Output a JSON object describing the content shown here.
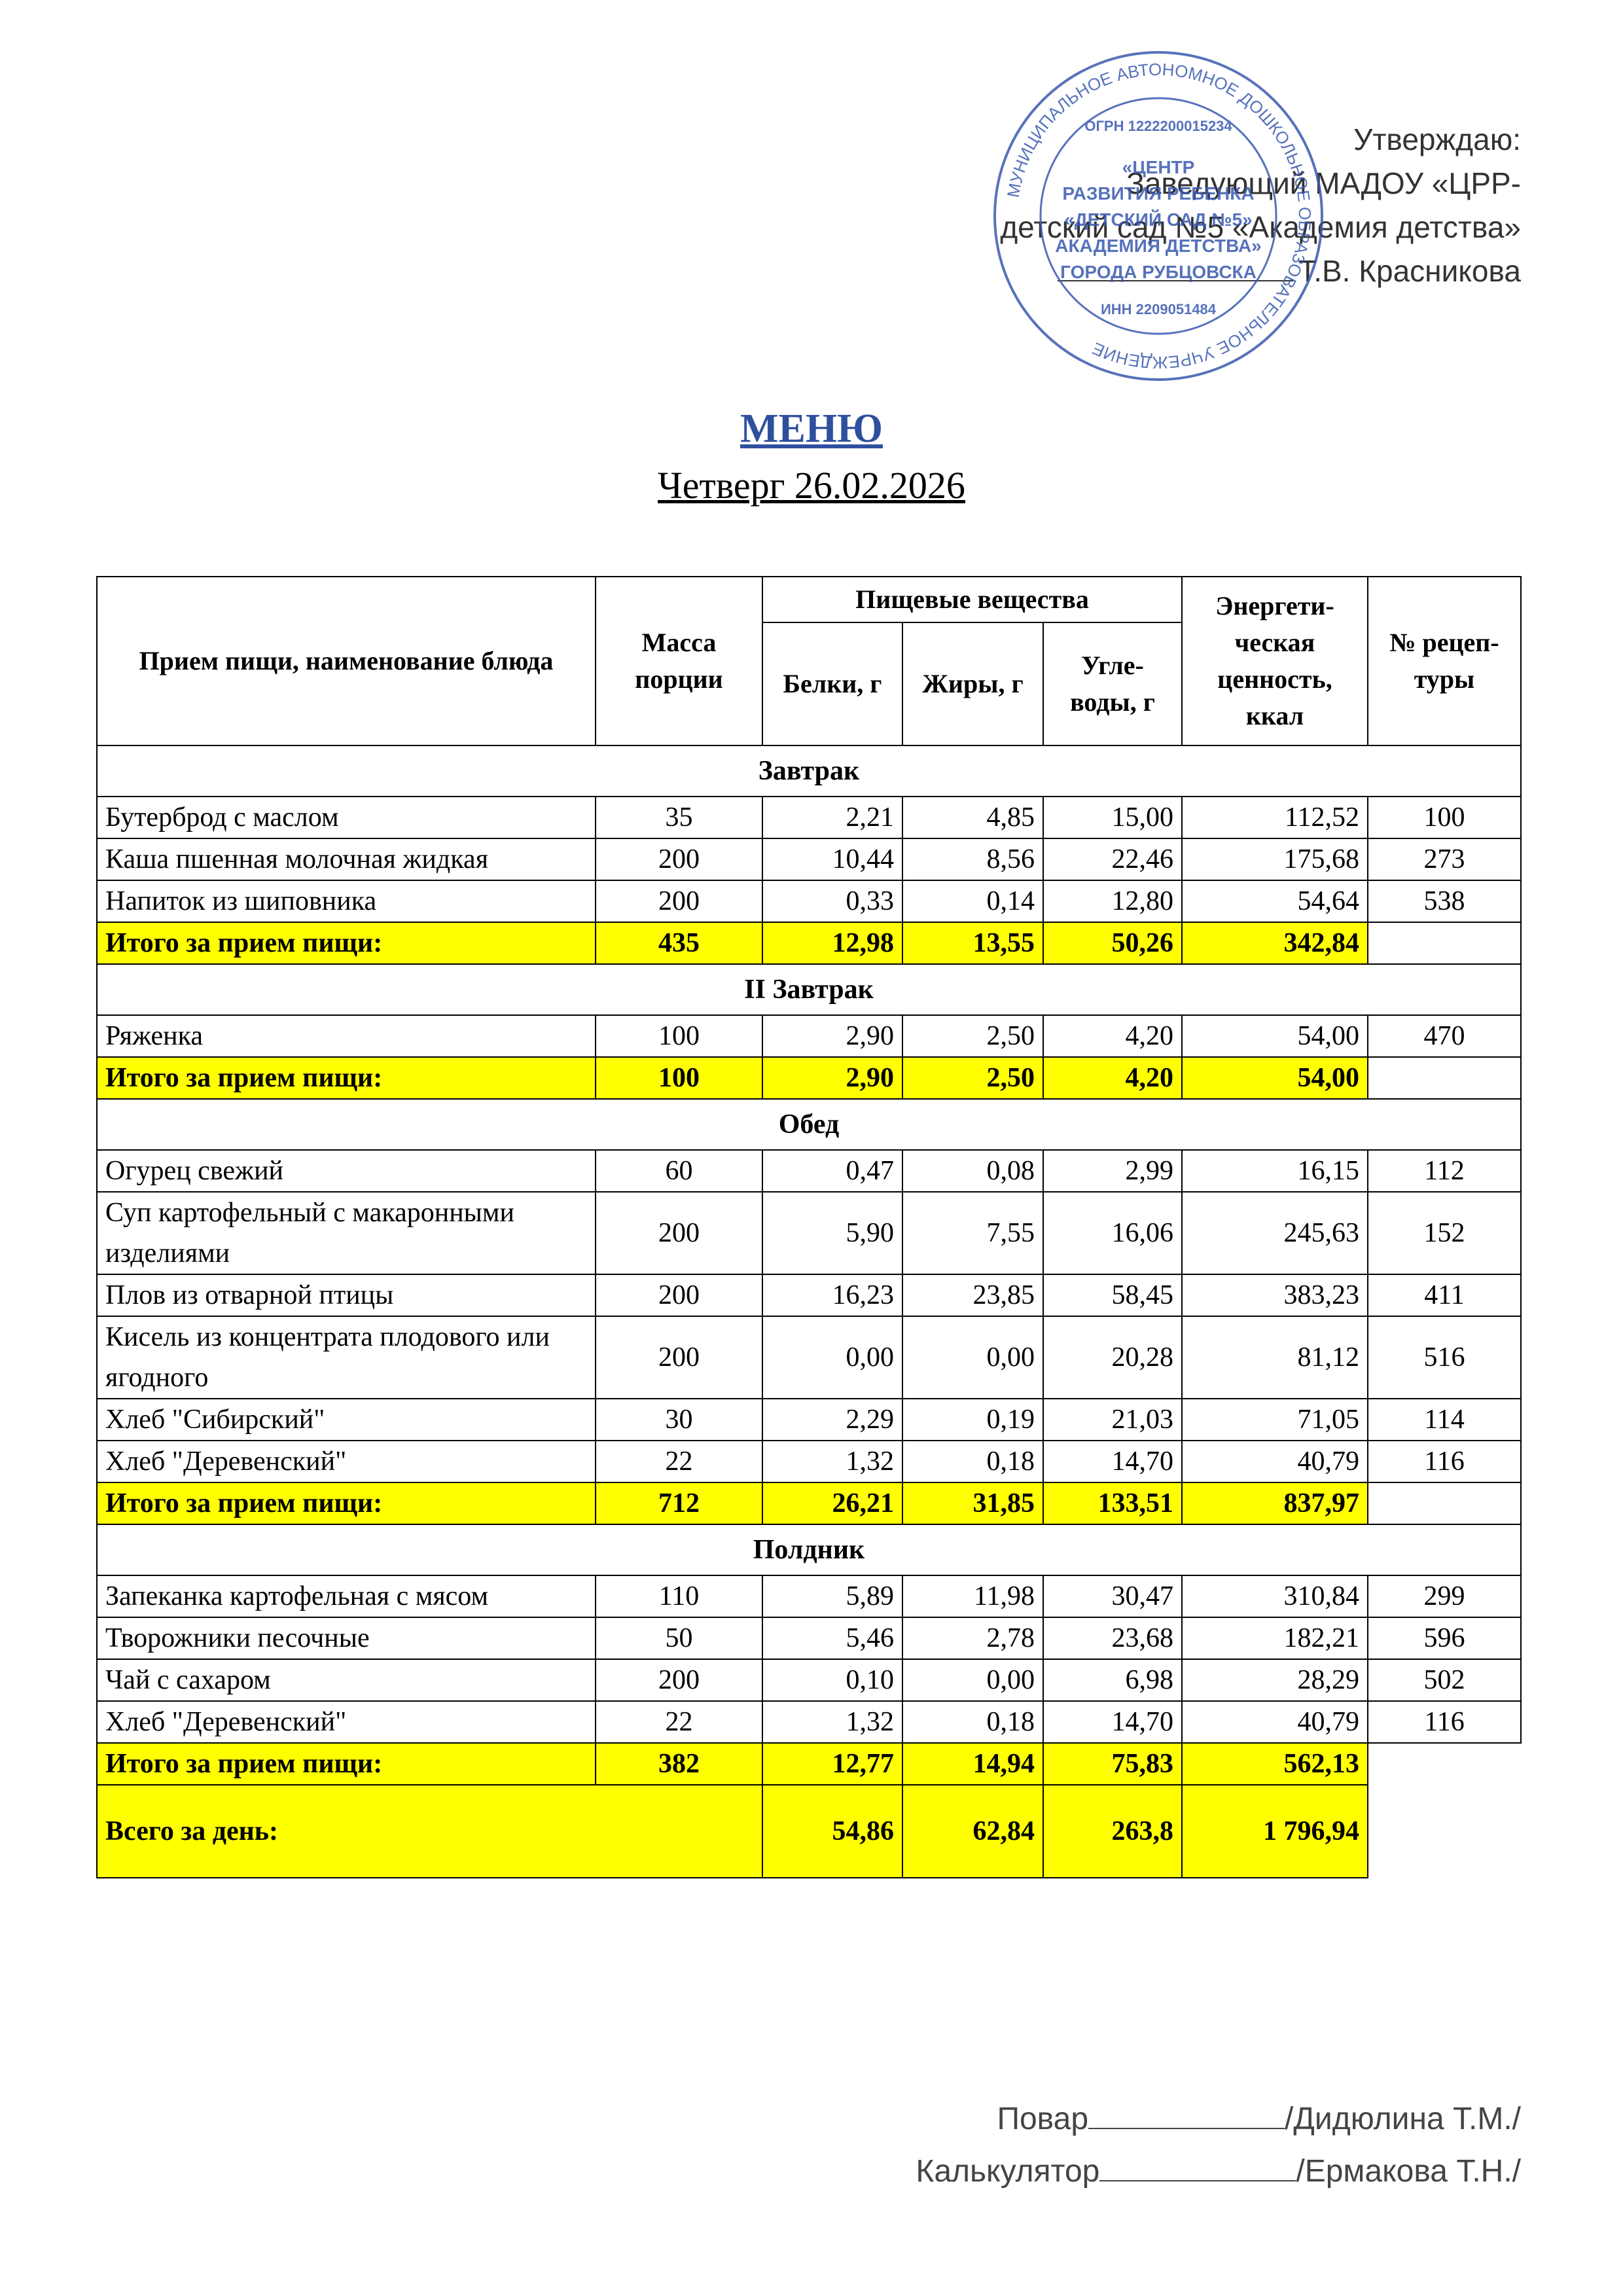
{
  "approval": {
    "lines": [
      "Утверждаю:",
      "Заведующий МАДОУ «ЦРР-",
      "детский сад №5 «Академия детства»",
      "Т.В.  Красникова"
    ],
    "stamp": {
      "ring": "МУНИЦИПАЛЬНОЕ АВТОНОМНОЕ ДОШКОЛЬНОЕ ОБРАЗОВАТЕЛЬНОЕ УЧРЕЖДЕНИЕ",
      "ogrn": "ОГРН 1222200015234",
      "center": [
        "«ЦЕНТР",
        "РАЗВИТИЯ РЕБЕНКА",
        "«ДЕТСКИЙ САД №5»",
        "АКАДЕМИЯ ДЕТСТВА»",
        "ГОРОДА РУБЦОВСКА"
      ],
      "inn": "ИНН 2209051484"
    }
  },
  "header": {
    "title": "МЕНЮ",
    "subtitle": "Четверг 26.02.2026"
  },
  "table": {
    "columns": {
      "meal": "Прием пищи, наименование блюда",
      "mass": "Масса порции",
      "nutrients": "Пищевые вещества",
      "protein": "Белки, г",
      "fat": "Жиры, г",
      "carbs": "Угле- воды, г",
      "energy": "Энергети- ческая ценность, ккал",
      "recipe": "№ рецеп- туры"
    },
    "sections": [
      {
        "name": "Завтрак",
        "items": [
          [
            "Бутерброд с маслом",
            "35",
            "2,21",
            "4,85",
            "15,00",
            "112,52",
            "100"
          ],
          [
            "Каша пшенная молочная жидкая",
            "200",
            "10,44",
            "8,56",
            "22,46",
            "175,68",
            "273"
          ],
          [
            "Напиток из шиповника",
            "200",
            "0,33",
            "0,14",
            "12,80",
            "54,64",
            "538"
          ]
        ],
        "total": [
          "Итого за прием пищи:",
          "435",
          "12,98",
          "13,55",
          "50,26",
          "342,84"
        ]
      },
      {
        "name": "II Завтрак",
        "items": [
          [
            "Ряженка",
            "100",
            "2,90",
            "2,50",
            "4,20",
            "54,00",
            "470"
          ]
        ],
        "total": [
          "Итого за прием пищи:",
          "100",
          "2,90",
          "2,50",
          "4,20",
          "54,00"
        ]
      },
      {
        "name": "Обед",
        "items": [
          [
            "Огурец свежий",
            "60",
            "0,47",
            "0,08",
            "2,99",
            "16,15",
            "112"
          ],
          [
            "Суп картофельный с макаронными изделиями",
            "200",
            "5,90",
            "7,55",
            "16,06",
            "245,63",
            "152"
          ],
          [
            "Плов из отварной птицы",
            "200",
            "16,23",
            "23,85",
            "58,45",
            "383,23",
            "411"
          ],
          [
            "Кисель из концентрата плодового или ягодного",
            "200",
            "0,00",
            "0,00",
            "20,28",
            "81,12",
            "516"
          ],
          [
            "Хлеб \"Сибирский\"",
            "30",
            "2,29",
            "0,19",
            "21,03",
            "71,05",
            "114"
          ],
          [
            "Хлеб \"Деревенский\"",
            "22",
            "1,32",
            "0,18",
            "14,70",
            "40,79",
            "116"
          ]
        ],
        "total": [
          "Итого за прием пищи:",
          "712",
          "26,21",
          "31,85",
          "133,51",
          "837,97"
        ]
      },
      {
        "name": "Полдник",
        "items": [
          [
            "Запеканка картофельная с мясом",
            "110",
            "5,89",
            "11,98",
            "30,47",
            "310,84",
            "299"
          ],
          [
            "Творожники песочные",
            "50",
            "5,46",
            "2,78",
            "23,68",
            "182,21",
            "596"
          ],
          [
            "Чай с сахаром",
            "200",
            "0,10",
            "0,00",
            "6,98",
            "28,29",
            "502"
          ],
          [
            "Хлеб \"Деревенский\"",
            "22",
            "1,32",
            "0,18",
            "14,70",
            "40,79",
            "116"
          ]
        ],
        "total": [
          "Итого за прием пищи:",
          "382",
          "12,77",
          "14,94",
          "75,83",
          "562,13"
        ]
      }
    ],
    "grand_total": [
      "Всего за день:",
      "54,86",
      "62,84",
      "263,8",
      "1 796,94"
    ]
  },
  "footer": {
    "cook_role": "Повар",
    "cook_name": "/Дидюлина Т.М./",
    "calc_role": "Калькулятор",
    "calc_name": "/Ермакова Т.Н./"
  }
}
